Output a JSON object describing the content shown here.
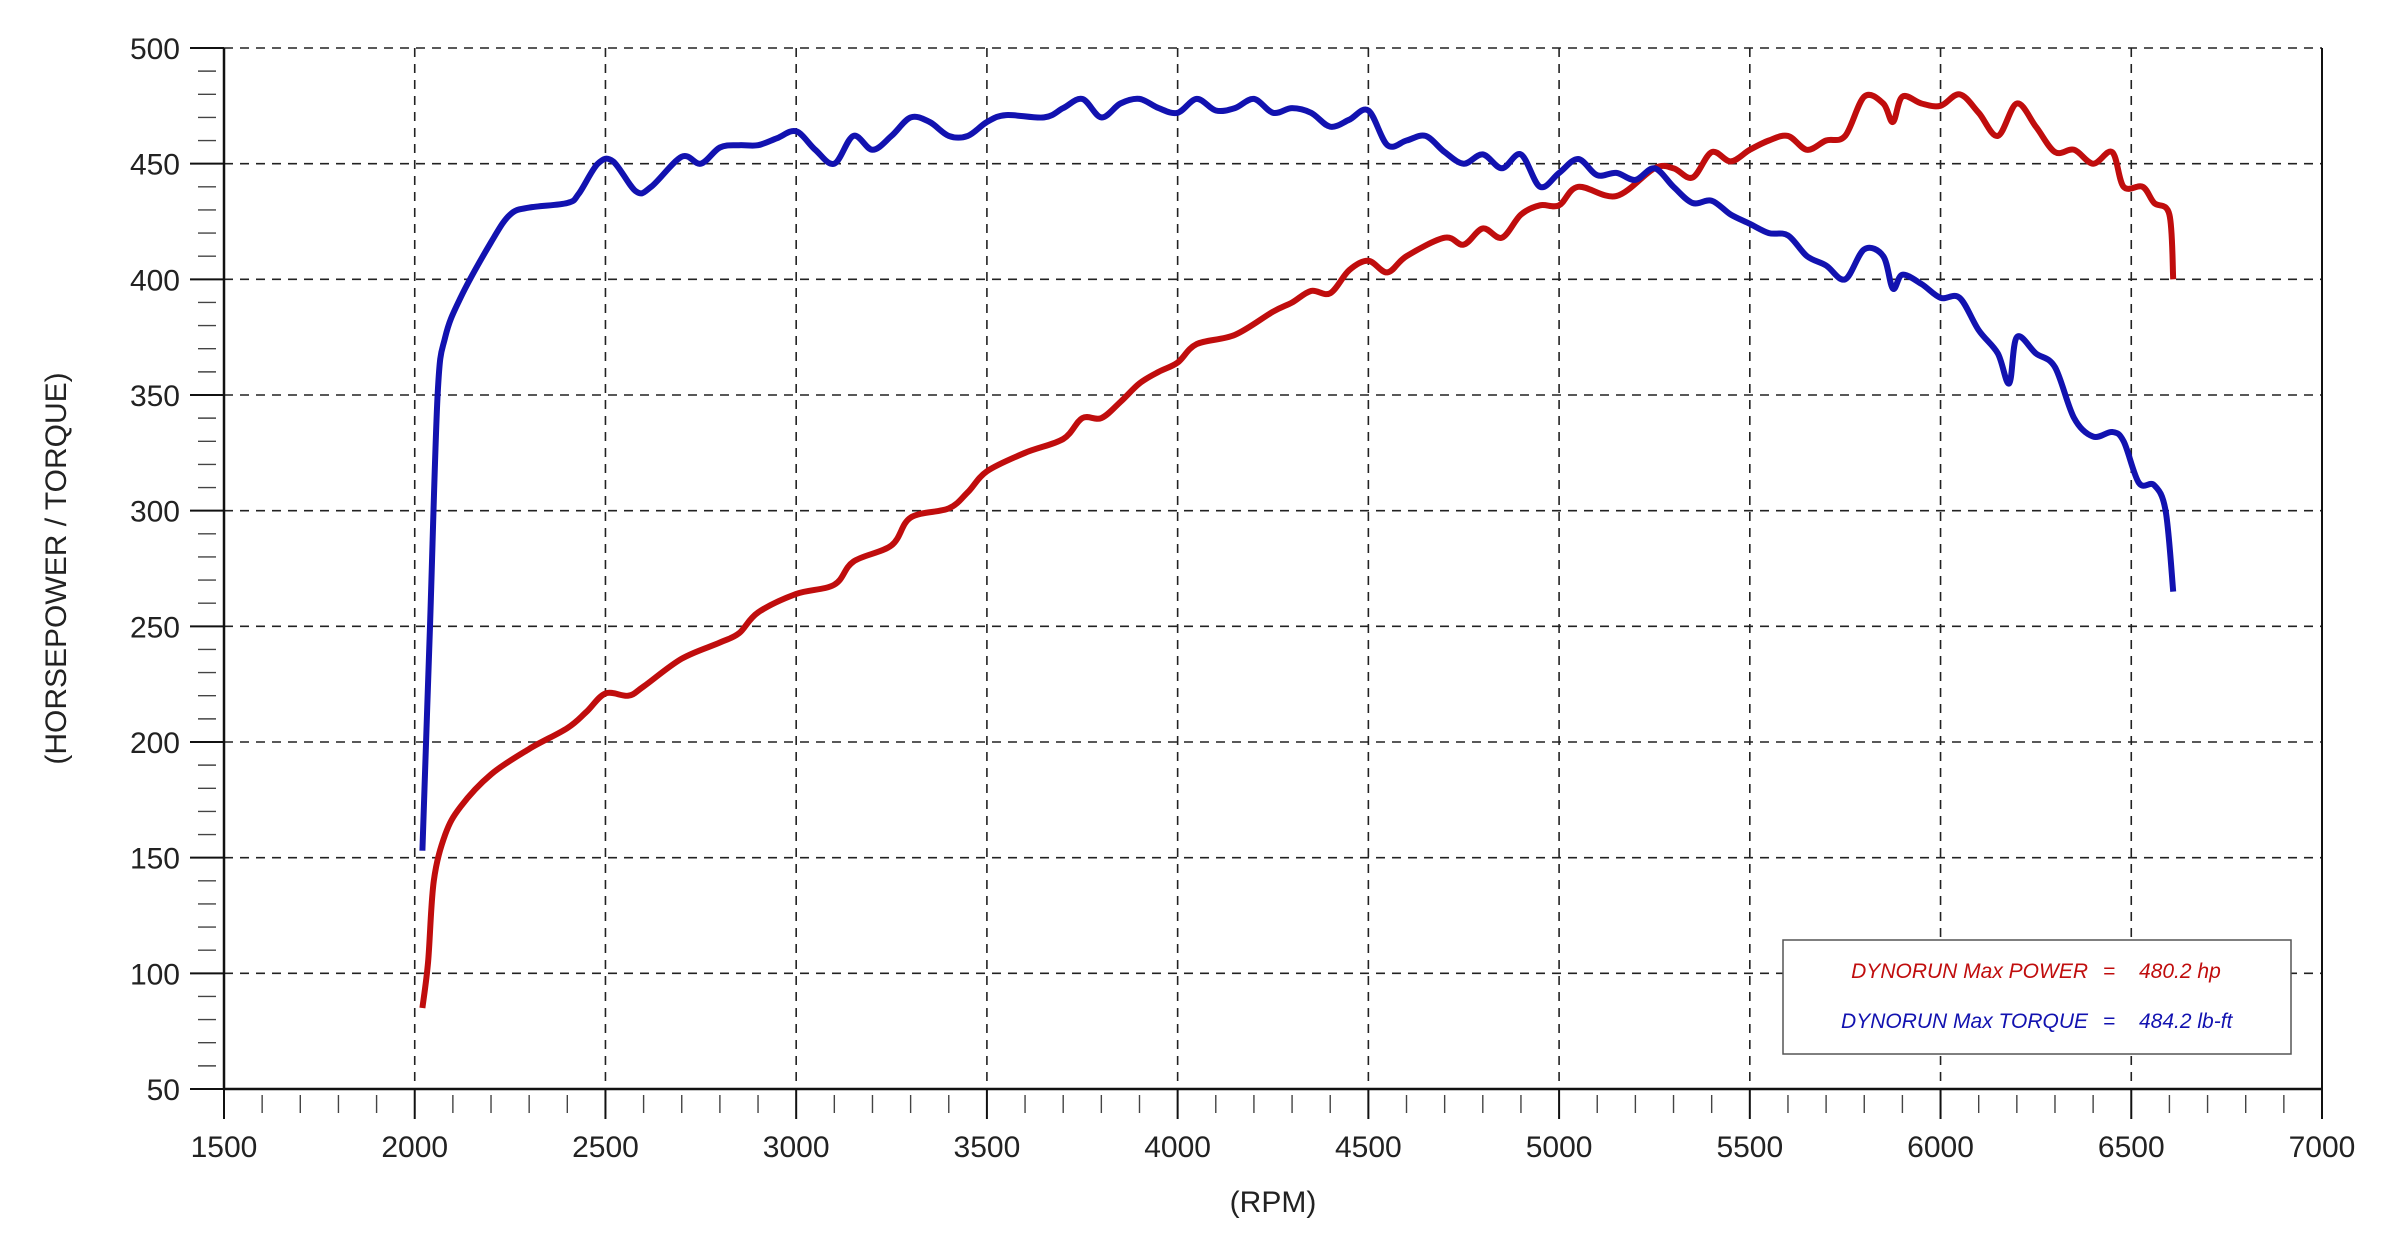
{
  "chart_data": {
    "type": "line",
    "xlabel": "(RPM)",
    "ylabel": "(HORSEPOWER / TORQUE)",
    "xlim": [
      1500,
      7000
    ],
    "ylim": [
      50,
      500
    ],
    "xticks": [
      1500,
      2000,
      2500,
      3000,
      3500,
      4000,
      4500,
      5000,
      5500,
      6000,
      6500,
      7000
    ],
    "yticks": [
      50,
      100,
      150,
      200,
      250,
      300,
      350,
      400,
      450,
      500
    ],
    "grid": true,
    "legend_position": "bottom-right",
    "series": [
      {
        "key": "power",
        "color": "#c00d0d",
        "points": [
          [
            2020,
            85
          ],
          [
            2035,
            105
          ],
          [
            2050,
            140
          ],
          [
            2080,
            160
          ],
          [
            2120,
            172
          ],
          [
            2200,
            186
          ],
          [
            2300,
            197
          ],
          [
            2400,
            206
          ],
          [
            2450,
            213
          ],
          [
            2500,
            221
          ],
          [
            2560,
            220
          ],
          [
            2600,
            224
          ],
          [
            2700,
            236
          ],
          [
            2800,
            243
          ],
          [
            2850,
            247
          ],
          [
            2900,
            256
          ],
          [
            3000,
            264
          ],
          [
            3100,
            268
          ],
          [
            3150,
            278
          ],
          [
            3250,
            285
          ],
          [
            3300,
            297
          ],
          [
            3400,
            301
          ],
          [
            3450,
            308
          ],
          [
            3500,
            317
          ],
          [
            3600,
            325
          ],
          [
            3700,
            331
          ],
          [
            3750,
            340
          ],
          [
            3800,
            340
          ],
          [
            3850,
            347
          ],
          [
            3900,
            355
          ],
          [
            3950,
            360
          ],
          [
            4000,
            364
          ],
          [
            4050,
            372
          ],
          [
            4150,
            376
          ],
          [
            4250,
            386
          ],
          [
            4300,
            390
          ],
          [
            4350,
            395
          ],
          [
            4400,
            394
          ],
          [
            4450,
            404
          ],
          [
            4500,
            408
          ],
          [
            4550,
            403
          ],
          [
            4600,
            410
          ],
          [
            4700,
            418
          ],
          [
            4750,
            415
          ],
          [
            4800,
            422
          ],
          [
            4850,
            418
          ],
          [
            4900,
            428
          ],
          [
            4950,
            432
          ],
          [
            5000,
            432
          ],
          [
            5050,
            440
          ],
          [
            5150,
            436
          ],
          [
            5250,
            448
          ],
          [
            5300,
            448
          ],
          [
            5350,
            444
          ],
          [
            5400,
            455
          ],
          [
            5450,
            451
          ],
          [
            5500,
            456
          ],
          [
            5550,
            460
          ],
          [
            5600,
            462
          ],
          [
            5650,
            456
          ],
          [
            5700,
            460
          ],
          [
            5750,
            462
          ],
          [
            5800,
            479
          ],
          [
            5850,
            476
          ],
          [
            5875,
            468
          ],
          [
            5900,
            479
          ],
          [
            5950,
            476
          ],
          [
            6000,
            475
          ],
          [
            6050,
            480
          ],
          [
            6100,
            472
          ],
          [
            6150,
            462
          ],
          [
            6200,
            476
          ],
          [
            6250,
            466
          ],
          [
            6300,
            455
          ],
          [
            6350,
            456
          ],
          [
            6400,
            450
          ],
          [
            6450,
            455
          ],
          [
            6480,
            440
          ],
          [
            6530,
            440
          ],
          [
            6560,
            433
          ],
          [
            6600,
            428
          ],
          [
            6610,
            400
          ]
        ]
      },
      {
        "key": "torque",
        "color": "#1212b0",
        "points": [
          [
            2020,
            153
          ],
          [
            2040,
            250
          ],
          [
            2060,
            350
          ],
          [
            2080,
            375
          ],
          [
            2120,
            392
          ],
          [
            2200,
            416
          ],
          [
            2250,
            428
          ],
          [
            2300,
            431
          ],
          [
            2400,
            433
          ],
          [
            2430,
            437
          ],
          [
            2480,
            450
          ],
          [
            2520,
            451
          ],
          [
            2580,
            438
          ],
          [
            2620,
            440
          ],
          [
            2700,
            453
          ],
          [
            2750,
            450
          ],
          [
            2800,
            457
          ],
          [
            2850,
            458
          ],
          [
            2900,
            458
          ],
          [
            2950,
            461
          ],
          [
            3000,
            464
          ],
          [
            3050,
            456
          ],
          [
            3100,
            450
          ],
          [
            3150,
            462
          ],
          [
            3200,
            456
          ],
          [
            3250,
            462
          ],
          [
            3300,
            470
          ],
          [
            3350,
            468
          ],
          [
            3400,
            462
          ],
          [
            3450,
            462
          ],
          [
            3500,
            468
          ],
          [
            3550,
            471
          ],
          [
            3650,
            470
          ],
          [
            3700,
            474
          ],
          [
            3750,
            478
          ],
          [
            3800,
            470
          ],
          [
            3850,
            476
          ],
          [
            3900,
            478
          ],
          [
            3950,
            474
          ],
          [
            4000,
            472
          ],
          [
            4050,
            478
          ],
          [
            4100,
            473
          ],
          [
            4150,
            474
          ],
          [
            4200,
            478
          ],
          [
            4250,
            472
          ],
          [
            4300,
            474
          ],
          [
            4350,
            472
          ],
          [
            4400,
            466
          ],
          [
            4450,
            469
          ],
          [
            4500,
            473
          ],
          [
            4550,
            458
          ],
          [
            4600,
            460
          ],
          [
            4650,
            462
          ],
          [
            4700,
            455
          ],
          [
            4750,
            450
          ],
          [
            4800,
            454
          ],
          [
            4850,
            448
          ],
          [
            4900,
            454
          ],
          [
            4950,
            440
          ],
          [
            5000,
            446
          ],
          [
            5050,
            452
          ],
          [
            5100,
            445
          ],
          [
            5150,
            446
          ],
          [
            5200,
            443
          ],
          [
            5250,
            448
          ],
          [
            5300,
            440
          ],
          [
            5350,
            433
          ],
          [
            5400,
            434
          ],
          [
            5450,
            428
          ],
          [
            5500,
            424
          ],
          [
            5550,
            420
          ],
          [
            5600,
            419
          ],
          [
            5650,
            410
          ],
          [
            5700,
            406
          ],
          [
            5750,
            400
          ],
          [
            5800,
            413
          ],
          [
            5850,
            410
          ],
          [
            5875,
            396
          ],
          [
            5900,
            402
          ],
          [
            5950,
            398
          ],
          [
            6000,
            392
          ],
          [
            6050,
            392
          ],
          [
            6100,
            378
          ],
          [
            6150,
            368
          ],
          [
            6180,
            355
          ],
          [
            6200,
            375
          ],
          [
            6250,
            368
          ],
          [
            6300,
            362
          ],
          [
            6350,
            340
          ],
          [
            6400,
            332
          ],
          [
            6450,
            334
          ],
          [
            6480,
            330
          ],
          [
            6520,
            312
          ],
          [
            6560,
            311
          ],
          [
            6590,
            300
          ],
          [
            6610,
            265
          ]
        ]
      }
    ],
    "legend": [
      {
        "key": "power",
        "label": "DYNORUN Max POWER",
        "sep": "=",
        "value": "480.2 hp",
        "color": "#c00d0d"
      },
      {
        "key": "torque",
        "label": "DYNORUN Max TORQUE",
        "sep": "=",
        "value": "484.2 lb-ft",
        "color": "#1212b0"
      }
    ]
  }
}
